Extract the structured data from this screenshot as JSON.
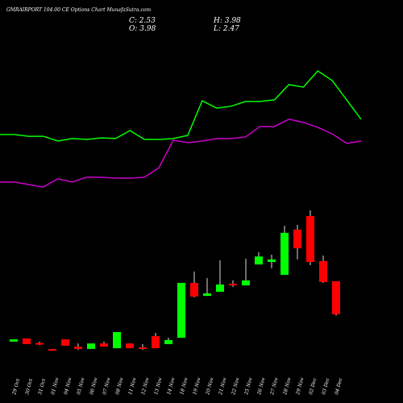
{
  "chart_data": {
    "type": "candlestick",
    "title": "GMRAIRPORT 104.00 CE Options Chart MunafaSutra.com",
    "info": [
      "C: 2.53",
      "O: 3.98",
      "H: 3.98",
      "L: 2.47"
    ],
    "categories": [
      "29 Oct",
      "30 Oct",
      "31 Oct",
      "01 Nov",
      "04 Nov",
      "05 Nov",
      "06 Nov",
      "07 Nov",
      "08 Nov",
      "11 Nov",
      "12 Nov",
      "13 Nov",
      "14 Nov",
      "18 Nov",
      "19 Nov",
      "20 Nov",
      "21 Nov",
      "22 Nov",
      "25 Nov",
      "26 Nov",
      "27 Nov",
      "28 Nov",
      "29 Nov",
      "02 Dec",
      "03 Dec",
      "04 Dec"
    ],
    "open": [
      1.33,
      1.47,
      1.27,
      1.0,
      1.43,
      1.11,
      1.01,
      1.25,
      1.04,
      1.25,
      1.08,
      1.57,
      1.22,
      1.5,
      3.91,
      3.34,
      3.52,
      3.87,
      3.8,
      4.72,
      4.83,
      4.26,
      6.25,
      6.85,
      4.87,
      3.98
    ],
    "high": [
      1.43,
      1.47,
      1.33,
      1.0,
      1.43,
      1.25,
      1.25,
      1.33,
      1.75,
      1.25,
      1.22,
      1.71,
      1.5,
      3.91,
      4.41,
      4.12,
      4.9,
      4.02,
      4.97,
      5.26,
      5.15,
      6.42,
      6.46,
      7.1,
      5.11,
      3.98
    ],
    "low": [
      1.33,
      1.22,
      1.18,
      0.97,
      1.15,
      0.97,
      1.01,
      1.11,
      1.04,
      1.04,
      0.97,
      1.04,
      1.22,
      1.5,
      3.27,
      3.34,
      3.52,
      3.73,
      3.8,
      4.72,
      4.55,
      4.26,
      4.94,
      4.69,
      3.91,
      2.47
    ],
    "close": [
      1.43,
      1.22,
      1.25,
      0.97,
      1.15,
      1.01,
      1.25,
      1.11,
      1.75,
      1.04,
      1.06,
      1.04,
      1.4,
      3.91,
      3.31,
      3.45,
      3.84,
      3.8,
      4.02,
      5.07,
      4.94,
      6.11,
      5.43,
      4.83,
      3.95,
      2.53
    ],
    "up_color": "#00ff00",
    "down_color": "#ff0000",
    "series": [
      {
        "color": "#00ff00",
        "values": [
          10.43,
          10.43,
          10.35,
          10.35,
          10.14,
          10.25,
          10.21,
          10.28,
          10.25,
          10.6,
          10.21,
          10.21,
          10.25,
          10.39,
          11.91,
          11.59,
          11.67,
          11.88,
          11.88,
          11.95,
          12.62,
          12.51,
          13.22,
          12.8,
          11.95,
          11.1
        ]
      },
      {
        "color": "#cc00cc",
        "values": [
          8.34,
          8.34,
          8.23,
          8.12,
          8.48,
          8.34,
          8.55,
          8.55,
          8.51,
          8.51,
          8.55,
          8.97,
          10.18,
          10.07,
          10.14,
          10.25,
          10.25,
          10.32,
          10.78,
          10.78,
          11.1,
          10.96,
          10.74,
          10.46,
          10.04,
          10.14
        ]
      }
    ],
    "ylim": [
      0.9,
      14.0
    ]
  }
}
